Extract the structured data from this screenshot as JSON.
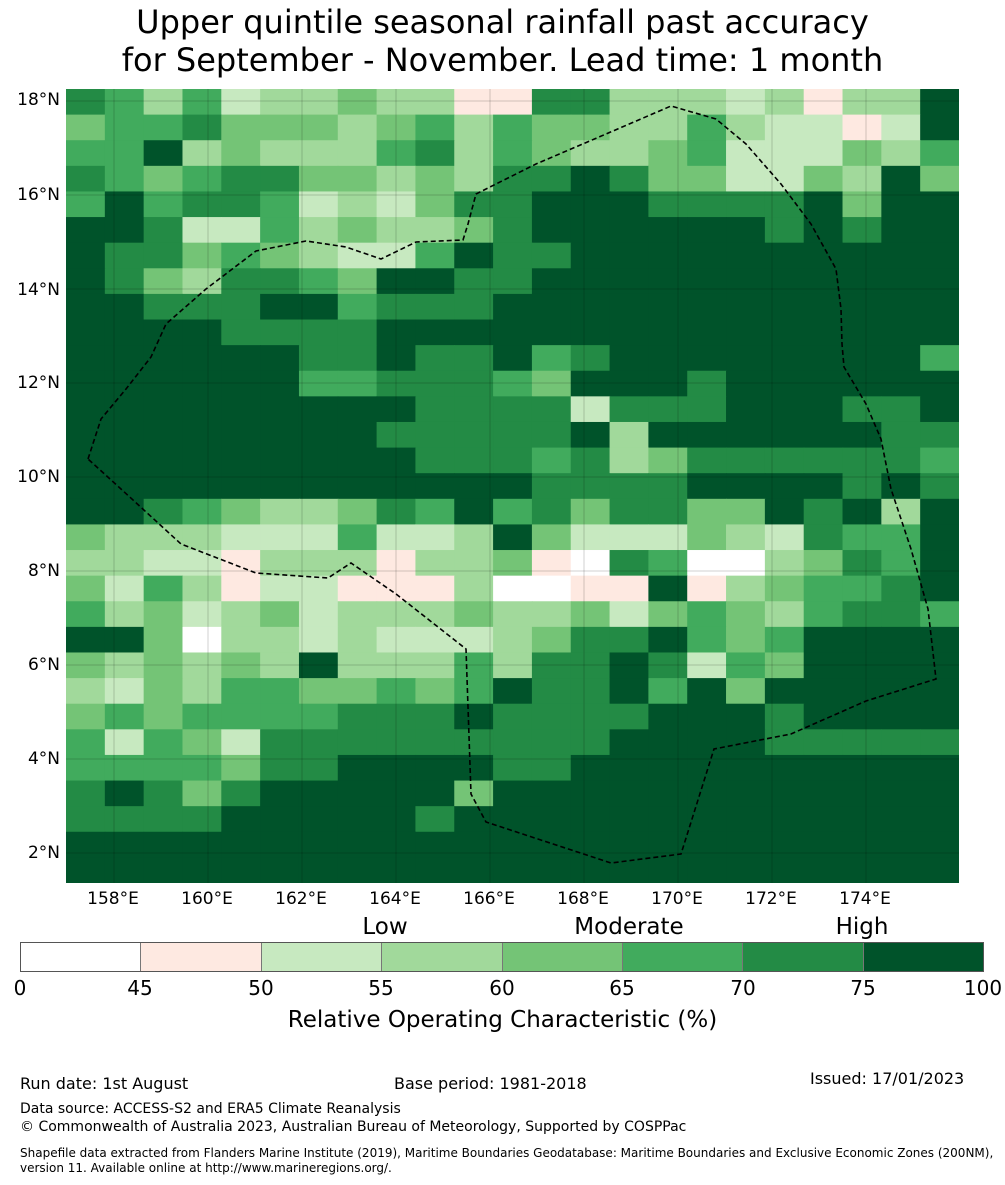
{
  "title": {
    "line1": "Upper quintile seasonal rainfall past accuracy",
    "line2": "for September - November. Lead time: 1 month"
  },
  "map": {
    "lat_labels": [
      "18°N",
      "16°N",
      "14°N",
      "12°N",
      "10°N",
      "8°N",
      "6°N",
      "4°N",
      "2°N"
    ],
    "lon_labels": [
      "158°E",
      "160°E",
      "162°E",
      "164°E",
      "166°E",
      "168°E",
      "170°E",
      "172°E",
      "174°E"
    ],
    "grid_note_colors": {
      "white": "#ffffff",
      "pink": "#fee9e1",
      "pale": "#c7e9c0",
      "light": "#a1d99b",
      "mid": "#74c476",
      "green": "#41ab5d",
      "dark": "#238b45",
      "darkest": "#00532a"
    }
  },
  "colorbar": {
    "categories": [
      "Low",
      "Moderate",
      "High"
    ],
    "ticks": [
      "0",
      "45",
      "50",
      "55",
      "60",
      "65",
      "70",
      "75",
      "100"
    ],
    "colors": [
      "#ffffff",
      "#fee9e1",
      "#c7e9c0",
      "#a1d99b",
      "#74c476",
      "#41ab5d",
      "#238b45",
      "#00532a"
    ],
    "title": "Relative Operating Characteristic (%)"
  },
  "footer": {
    "run_date": "Run date: 1st August",
    "base_period": "Base period: 1981-2018",
    "issued": "Issued: 17/01/2023",
    "data_source": "Data source: ACCESS-S2 and ERA5 Climate Reanalysis",
    "copyright": "© Commonwealth of Australia 2023, Australian Bureau of Meteorology, Supported by COSPPac",
    "shapefile": "Shapefile data extracted from Flanders Marine Institute (2019), Maritime Boundaries Geodatabase: Maritime Boundaries and Exclusive Economic Zones (200NM), version 11. Available online at http://www.marineregions.org/."
  }
}
